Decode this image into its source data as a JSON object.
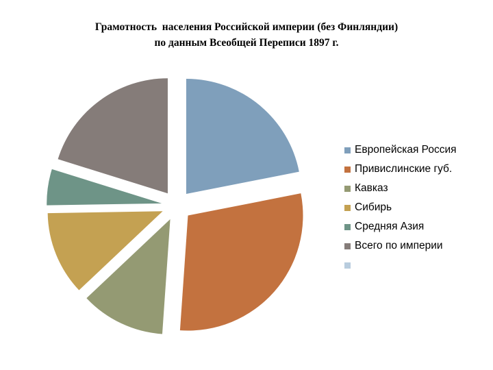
{
  "chart_data": {
    "type": "pie",
    "title_lines": [
      "Грамотность  населения Российской империи (без Финляндии)",
      "по данным Всеобщей Переписи 1897 г."
    ],
    "exploded": true,
    "legend_position": "right",
    "series": [
      {
        "name": "Европейская Россия",
        "value": 22.9,
        "color": "#7F9FBB"
      },
      {
        "name": "Привислинские губ.",
        "value": 30.5,
        "color": "#C3723F"
      },
      {
        "name": "Кавказ",
        "value": 12.4,
        "color": "#949A73"
      },
      {
        "name": "Сибирь",
        "value": 12.3,
        "color": "#C4A152"
      },
      {
        "name": "Средняя Азия",
        "value": 5.3,
        "color": "#6E9487"
      },
      {
        "name": "Всего по империи",
        "value": 21.1,
        "color": "#857C79"
      },
      {
        "name": "",
        "value": 0,
        "color": "#B8CCDE"
      }
    ]
  }
}
